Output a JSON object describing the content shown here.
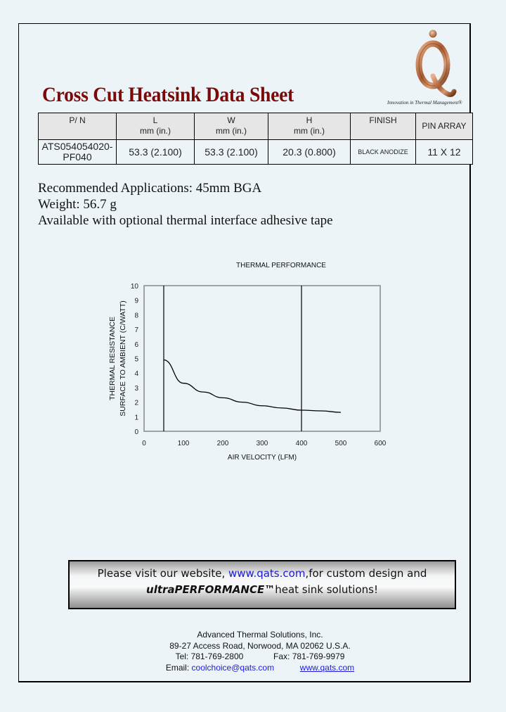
{
  "header": {
    "title": "Cross Cut Heatsink Data Sheet",
    "logo_letter": "Q",
    "tagline": "Innovation in Thermal Management®"
  },
  "spec_table": {
    "columns": [
      {
        "label": "P/ N",
        "unit": ""
      },
      {
        "label": "L",
        "unit": "mm (in.)"
      },
      {
        "label": "W",
        "unit": "mm (in.)"
      },
      {
        "label": "H",
        "unit": "mm (in.)"
      },
      {
        "label": "FINISH",
        "unit": ""
      },
      {
        "label": "PIN ARRAY",
        "unit": ""
      }
    ],
    "row": {
      "part_number_line1": "ATS054054020-",
      "part_number_line2": "PF040",
      "length": "53.3 (2.100)",
      "width": "53.3 (2.100)",
      "height": "20.3 (0.800)",
      "finish": "BLACK ANODIZE",
      "pin_array": "11 X 12"
    }
  },
  "info": {
    "applications": "Recommended Applications: 45mm BGA",
    "weight": "Weight: 56.7 g",
    "availability": "Available with optional thermal interface adhesive tape"
  },
  "chart_data": {
    "type": "line",
    "title": "THERMAL PERFORMANCE",
    "xlabel": "AIR VELOCITY (LFM)",
    "ylabel_line1": "THERMAL RESISTANCE",
    "ylabel_line2": "SURFACE TO AMBIENT (C/WATT)",
    "xlim": [
      0,
      600
    ],
    "ylim": [
      0,
      10
    ],
    "x_ticks": [
      0,
      100,
      200,
      300,
      400,
      500,
      600
    ],
    "y_ticks": [
      0,
      1,
      2,
      3,
      4,
      5,
      6,
      7,
      8,
      9,
      10
    ],
    "grid": false,
    "vertical_markers": [
      50,
      400
    ],
    "series": [
      {
        "name": "Thermal Resistance",
        "x": [
          50,
          100,
          150,
          200,
          250,
          300,
          350,
          400,
          450,
          500
        ],
        "values": [
          4.9,
          3.3,
          2.7,
          2.3,
          2.0,
          1.75,
          1.6,
          1.45,
          1.4,
          1.3
        ]
      }
    ]
  },
  "banner": {
    "text_before_link": "Please visit our website, ",
    "link": "www.qats.com",
    "text_after_link": ",for custom design and",
    "brand": "ultraPERFORMANCE™",
    "text_end": "heat sink solutions!"
  },
  "footer": {
    "company": "Advanced Thermal Solutions, Inc.",
    "address": "89-27 Access Road, Norwood, MA 02062 U.S.A.",
    "tel_label": "Tel:  781-769-2800",
    "fax_label": "Fax: 781-769-9979",
    "email_label": "Email: ",
    "email": "coolchoice@qats.com",
    "website": "www.qats.com"
  },
  "colors": {
    "background": "#edf4f8",
    "title": "#7a0a0a",
    "link": "#1a1adc",
    "logo_copper": "#b06a3e"
  }
}
